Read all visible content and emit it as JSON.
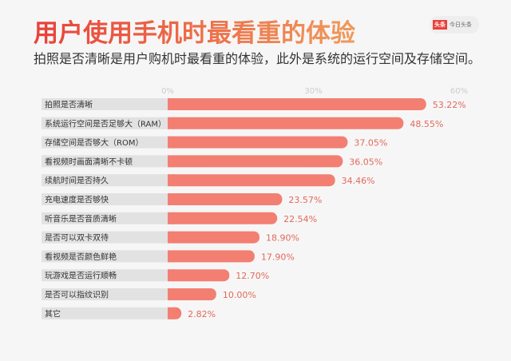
{
  "header": {
    "title": "用户使用手机时最看重的体验",
    "subtitle": "拍照是否清晰是用户购机时最看重的体验，此外是系统的运行空间及存储空间。"
  },
  "logo": {
    "badge": "头条",
    "name": "今日头条"
  },
  "colors": {
    "bar": "#f27f72",
    "label_bg": "#e3e2e2",
    "value_text": "#e06a5d"
  },
  "chart_data": {
    "type": "bar",
    "orientation": "horizontal",
    "categories": [
      "拍照是否清晰",
      "系统运行空间是否足够大（RAM）",
      "存储空间是否够大（ROM）",
      "看视频时画面清晰不卡顿",
      "续航时间是否持久",
      "充电速度是否够快",
      "听音乐是否音质清晰",
      "是否可以双卡双待",
      "看视频是否颜色鲜艳",
      "玩游戏是否运行顺畅",
      "是否可以指纹识别",
      "其它"
    ],
    "values": [
      53.22,
      48.55,
      37.05,
      36.05,
      34.46,
      23.57,
      22.54,
      18.9,
      17.9,
      12.7,
      10.0,
      2.82
    ],
    "value_labels": [
      "53.22%",
      "48.55%",
      "37.05%",
      "36.05%",
      "34.46%",
      "23.57%",
      "22.54%",
      "18.90%",
      "17.90%",
      "12.70%",
      "10.00%",
      "2.82%"
    ],
    "xlim": [
      0,
      60
    ],
    "tick_labels": [
      "0%",
      "30%",
      "60%"
    ],
    "ticks": [
      0,
      30,
      60
    ]
  }
}
